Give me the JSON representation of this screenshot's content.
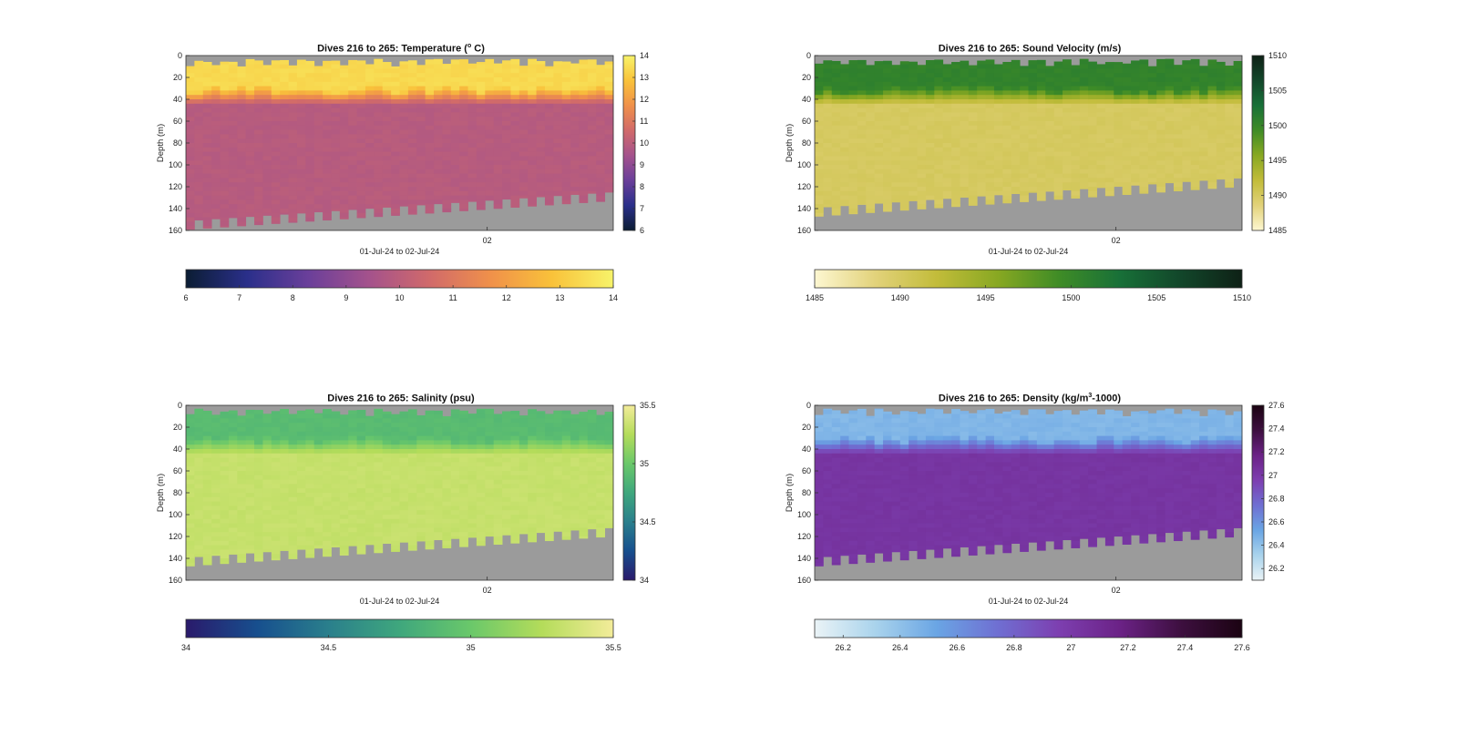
{
  "figure": {
    "background": "#ffffff"
  },
  "chart_data": [
    {
      "id": "temperature",
      "type": "heatmap",
      "title_prefix": "Dives 216 to 265: Temperature (",
      "title_sup": "o",
      "title_suffix": " C)",
      "xlabel": "01-Jul-24 to 02-Jul-24",
      "ylabel": "Depth (m)",
      "x_tick_labels": [
        "02"
      ],
      "y_ticks": [
        0,
        20,
        40,
        60,
        80,
        100,
        120,
        140,
        160
      ],
      "ylim": [
        0,
        160
      ],
      "y_reversed": true,
      "grid": false,
      "colormap": [
        "#0b1d33",
        "#2a2f8a",
        "#6a3f9a",
        "#a4528c",
        "#d16a6a",
        "#f0914a",
        "#f9c23a",
        "#f7f36a"
      ],
      "colorbar_side": {
        "ticks": [
          6,
          7,
          8,
          9,
          10,
          11,
          12,
          13,
          14
        ],
        "range": [
          6,
          14
        ]
      },
      "colorbar_bottom": {
        "ticks": [
          6,
          7,
          8,
          9,
          10,
          11,
          12,
          13,
          14
        ],
        "range": [
          6,
          14
        ]
      },
      "profile": {
        "surface": 13.4,
        "mixed_layer_depth": 30,
        "transition_depth": 45,
        "deep": 9.9
      },
      "bottom_depth_start": 157,
      "bottom_depth_end": 131,
      "no_data_color": "#9b9b9b"
    },
    {
      "id": "sound_velocity",
      "type": "heatmap",
      "title_prefix": "Dives 216 to 265: Sound Velocity (m/s)",
      "title_sup": "",
      "title_suffix": "",
      "xlabel": "01-Jul-24 to 02-Jul-24",
      "ylabel": "Depth (m)",
      "x_tick_labels": [
        "02"
      ],
      "y_ticks": [
        0,
        20,
        40,
        60,
        80,
        100,
        120,
        140,
        160
      ],
      "ylim": [
        0,
        160
      ],
      "y_reversed": true,
      "grid": false,
      "colormap": [
        "#fdf7d1",
        "#e2d27a",
        "#c2bc3a",
        "#88a822",
        "#3f8c26",
        "#187038",
        "#12462a",
        "#0e2116"
      ],
      "colorbar_side": {
        "ticks": [
          1485,
          1490,
          1495,
          1500,
          1505,
          1510
        ],
        "range": [
          1485,
          1510
        ]
      },
      "colorbar_bottom": {
        "ticks": [
          1485,
          1490,
          1495,
          1500,
          1505,
          1510
        ],
        "range": [
          1485,
          1510
        ]
      },
      "profile": {
        "surface": 1500.5,
        "mixed_layer_depth": 30,
        "transition_depth": 45,
        "deep": 1490
      },
      "bottom_depth_start": 145,
      "bottom_depth_end": 118,
      "no_data_color": "#9b9b9b"
    },
    {
      "id": "salinity",
      "type": "heatmap",
      "title_prefix": "Dives 216 to 265: Salinity (psu)",
      "title_sup": "",
      "title_suffix": "",
      "xlabel": "01-Jul-24 to 02-Jul-24",
      "ylabel": "Depth (m)",
      "x_tick_labels": [
        "02"
      ],
      "y_ticks": [
        0,
        20,
        40,
        60,
        80,
        100,
        120,
        140,
        160
      ],
      "ylim": [
        0,
        160
      ],
      "y_reversed": true,
      "grid": false,
      "colormap": [
        "#2a1a6b",
        "#174f8e",
        "#2a7f8c",
        "#3fa77d",
        "#6ac86a",
        "#b4dc5a",
        "#f3ec9a"
      ],
      "colorbar_side": {
        "ticks": [
          34,
          34.5,
          35,
          35.5
        ],
        "range": [
          34,
          35.5
        ]
      },
      "colorbar_bottom": {
        "ticks": [
          34,
          34.5,
          35,
          35.5
        ],
        "range": [
          34,
          35.5
        ]
      },
      "profile": {
        "surface": 34.9,
        "mixed_layer_depth": 30,
        "transition_depth": 45,
        "deep": 35.32
      },
      "bottom_depth_start": 145,
      "bottom_depth_end": 118,
      "no_data_color": "#9b9b9b"
    },
    {
      "id": "density",
      "type": "heatmap",
      "title_prefix": "Dives 216 to 265: Density (kg/m",
      "title_sup": "3",
      "title_suffix": "-1000)",
      "xlabel": "01-Jul-24 to 02-Jul-24",
      "ylabel": "Depth (m)",
      "x_tick_labels": [
        "02"
      ],
      "y_ticks": [
        0,
        20,
        40,
        60,
        80,
        100,
        120,
        140,
        160
      ],
      "ylim": [
        0,
        160
      ],
      "y_reversed": true,
      "grid": false,
      "colormap": [
        "#eaf3f6",
        "#a9d3ec",
        "#6aa5e4",
        "#6f6fd2",
        "#7d3fb0",
        "#6b2286",
        "#3d0f3f",
        "#1b0312"
      ],
      "colorbar_side": {
        "ticks": [
          26.2,
          26.4,
          26.6,
          26.8,
          27,
          27.2,
          27.4,
          27.6
        ],
        "range": [
          26.1,
          27.6
        ]
      },
      "colorbar_bottom": {
        "ticks": [
          26.2,
          26.4,
          26.6,
          26.8,
          27,
          27.2,
          27.4,
          27.6
        ],
        "range": [
          26.1,
          27.6
        ]
      },
      "profile": {
        "surface": 26.45,
        "mixed_layer_depth": 30,
        "transition_depth": 45,
        "deep": 27.03
      },
      "bottom_depth_start": 145,
      "bottom_depth_end": 118,
      "no_data_color": "#9b9b9b"
    }
  ]
}
